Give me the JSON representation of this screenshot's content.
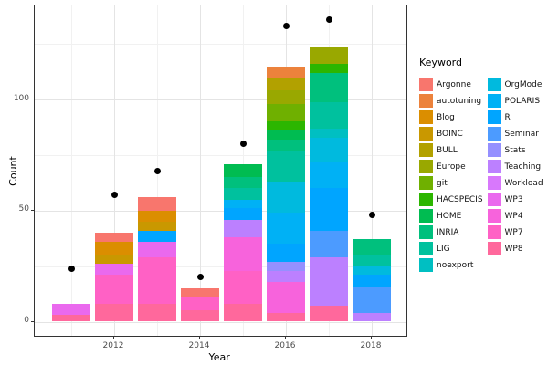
{
  "figure": {
    "background": "#FFFFFF",
    "panel_border": "#333333",
    "grid_major_color": "#E4E4E4",
    "grid_minor_color": "#F1F1F1",
    "point_color": "#000000"
  },
  "chart_data": {
    "type": "bar",
    "stacked": true,
    "title": "",
    "xlabel": "Year",
    "ylabel": "Count",
    "legend_title": "Keyword",
    "legend_position": "right",
    "grid": true,
    "ylim": [
      0,
      142
    ],
    "y_major_ticks": [
      0,
      50,
      100
    ],
    "y_minor_ticks": [
      25,
      75,
      125
    ],
    "x_major_years": [
      2012,
      2014,
      2016,
      2018
    ],
    "x_minor_years": [
      2011,
      2013,
      2015,
      2017
    ],
    "x_tick_labels": [
      "2012",
      "2014",
      "2016",
      "2018"
    ],
    "keywords": [
      {
        "name": "Argonne",
        "color": "#F8766D"
      },
      {
        "name": "autotuning",
        "color": "#EC823C"
      },
      {
        "name": "Blog",
        "color": "#DB8E00"
      },
      {
        "name": "BOINC",
        "color": "#C99800"
      },
      {
        "name": "BULL",
        "color": "#B2A100"
      },
      {
        "name": "Europe",
        "color": "#99A800"
      },
      {
        "name": "git",
        "color": "#6FB000"
      },
      {
        "name": "HACSPECIS",
        "color": "#2CB600"
      },
      {
        "name": "HOME",
        "color": "#00BC51"
      },
      {
        "name": "INRIA",
        "color": "#00C07D"
      },
      {
        "name": "LIG",
        "color": "#00C19E"
      },
      {
        "name": "noexport",
        "color": "#00BFC2"
      },
      {
        "name": "OrgMode",
        "color": "#00BADE"
      },
      {
        "name": "POLARIS",
        "color": "#00B1F5"
      },
      {
        "name": "R",
        "color": "#00A5FF"
      },
      {
        "name": "Seminar",
        "color": "#4C9BFF"
      },
      {
        "name": "Stats",
        "color": "#9590FF"
      },
      {
        "name": "Teaching",
        "color": "#BC80FF"
      },
      {
        "name": "Workload",
        "color": "#D878FC"
      },
      {
        "name": "WP3",
        "color": "#EA69EE"
      },
      {
        "name": "WP4",
        "color": "#F763DC"
      },
      {
        "name": "WP7",
        "color": "#FF61C5"
      },
      {
        "name": "WP8",
        "color": "#FF689C"
      }
    ],
    "bars": [
      {
        "year": 2011,
        "total": 8,
        "segments": [
          {
            "keyword": "WP8",
            "value": 3
          },
          {
            "keyword": "WP3",
            "value": 5
          }
        ]
      },
      {
        "year": 2012,
        "total": 40,
        "segments": [
          {
            "keyword": "WP8",
            "value": 8
          },
          {
            "keyword": "WP7",
            "value": 13
          },
          {
            "keyword": "WP3",
            "value": 5
          },
          {
            "keyword": "BOINC",
            "value": 4
          },
          {
            "keyword": "Blog",
            "value": 6
          },
          {
            "keyword": "Argonne",
            "value": 4
          }
        ]
      },
      {
        "year": 2013,
        "total": 56,
        "segments": [
          {
            "keyword": "WP8",
            "value": 8
          },
          {
            "keyword": "WP7",
            "value": 21
          },
          {
            "keyword": "WP3",
            "value": 7
          },
          {
            "keyword": "R",
            "value": 5
          },
          {
            "keyword": "BOINC",
            "value": 4
          },
          {
            "keyword": "Blog",
            "value": 5
          },
          {
            "keyword": "Argonne",
            "value": 6
          }
        ]
      },
      {
        "year": 2014,
        "total": 15,
        "segments": [
          {
            "keyword": "WP8",
            "value": 5
          },
          {
            "keyword": "WP7",
            "value": 6
          },
          {
            "keyword": "Argonne",
            "value": 4
          }
        ]
      },
      {
        "year": 2015,
        "total": 71,
        "segments": [
          {
            "keyword": "WP8",
            "value": 8
          },
          {
            "keyword": "WP7",
            "value": 15
          },
          {
            "keyword": "WP4",
            "value": 15
          },
          {
            "keyword": "Teaching",
            "value": 8
          },
          {
            "keyword": "R",
            "value": 5
          },
          {
            "keyword": "POLARIS",
            "value": 4
          },
          {
            "keyword": "LIG",
            "value": 5
          },
          {
            "keyword": "INRIA",
            "value": 5
          },
          {
            "keyword": "HOME",
            "value": 6
          }
        ]
      },
      {
        "year": 2016,
        "total": 115,
        "segments": [
          {
            "keyword": "WP8",
            "value": 4
          },
          {
            "keyword": "WP4",
            "value": 14
          },
          {
            "keyword": "Teaching",
            "value": 5
          },
          {
            "keyword": "Stats",
            "value": 4
          },
          {
            "keyword": "R",
            "value": 8
          },
          {
            "keyword": "POLARIS",
            "value": 14
          },
          {
            "keyword": "OrgMode",
            "value": 14
          },
          {
            "keyword": "LIG",
            "value": 14
          },
          {
            "keyword": "INRIA",
            "value": 5
          },
          {
            "keyword": "HOME",
            "value": 4
          },
          {
            "keyword": "HACSPECIS",
            "value": 4
          },
          {
            "keyword": "git",
            "value": 8
          },
          {
            "keyword": "Europe",
            "value": 6
          },
          {
            "keyword": "BULL",
            "value": 6
          },
          {
            "keyword": "autotuning",
            "value": 5
          }
        ]
      },
      {
        "year": 2017,
        "total": 124,
        "segments": [
          {
            "keyword": "WP8",
            "value": 7
          },
          {
            "keyword": "Teaching",
            "value": 22
          },
          {
            "keyword": "Seminar",
            "value": 12
          },
          {
            "keyword": "R",
            "value": 19
          },
          {
            "keyword": "POLARIS",
            "value": 12
          },
          {
            "keyword": "OrgMode",
            "value": 11
          },
          {
            "keyword": "noexport",
            "value": 4
          },
          {
            "keyword": "LIG",
            "value": 12
          },
          {
            "keyword": "INRIA",
            "value": 13
          },
          {
            "keyword": "HACSPECIS",
            "value": 4
          },
          {
            "keyword": "Europe",
            "value": 8
          }
        ]
      },
      {
        "year": 2018,
        "total": 37,
        "segments": [
          {
            "keyword": "Teaching",
            "value": 4
          },
          {
            "keyword": "Seminar",
            "value": 12
          },
          {
            "keyword": "R",
            "value": 5
          },
          {
            "keyword": "OrgMode",
            "value": 4
          },
          {
            "keyword": "LIG",
            "value": 5
          },
          {
            "keyword": "INRIA",
            "value": 7
          }
        ]
      }
    ],
    "points": [
      {
        "year": 2011,
        "value": 24
      },
      {
        "year": 2012,
        "value": 57
      },
      {
        "year": 2013,
        "value": 68
      },
      {
        "year": 2014,
        "value": 20
      },
      {
        "year": 2015,
        "value": 80
      },
      {
        "year": 2016,
        "value": 133
      },
      {
        "year": 2017,
        "value": 136
      },
      {
        "year": 2018,
        "value": 48
      }
    ]
  }
}
